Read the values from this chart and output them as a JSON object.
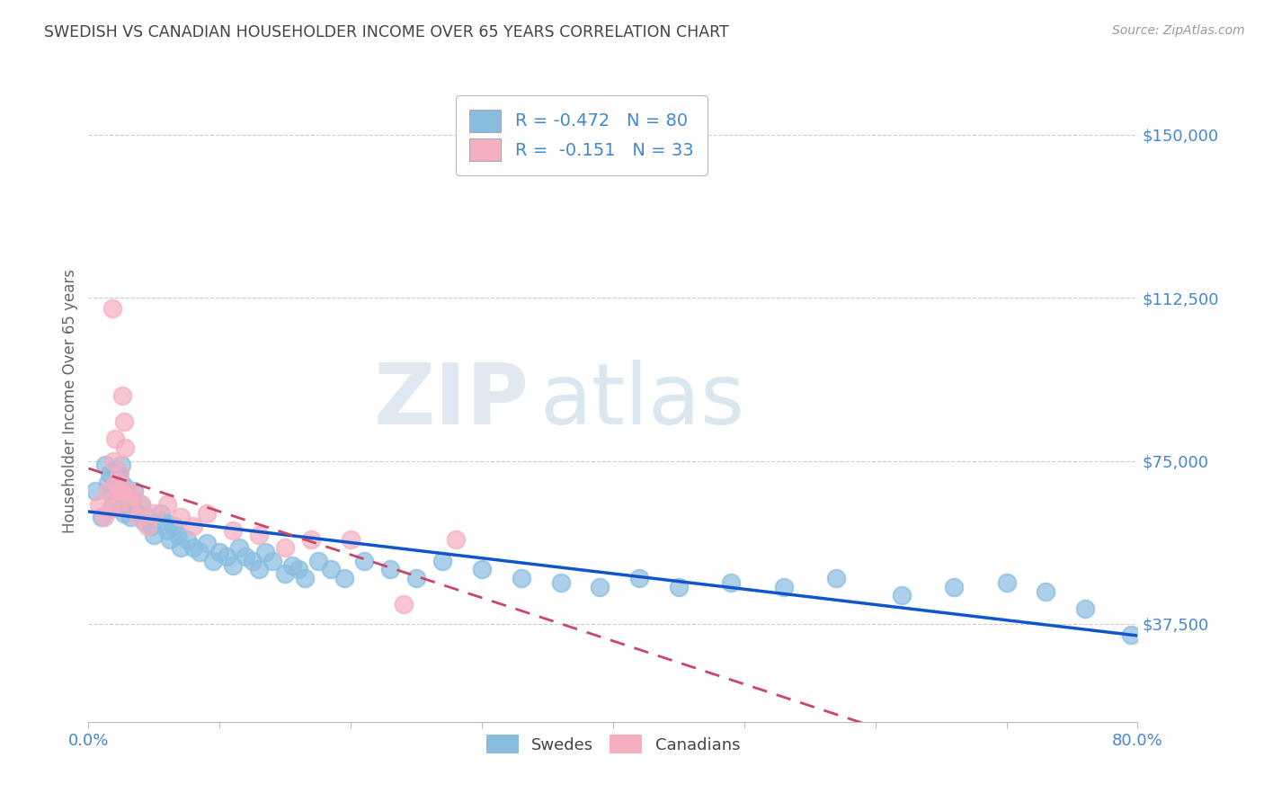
{
  "title": "SWEDISH VS CANADIAN HOUSEHOLDER INCOME OVER 65 YEARS CORRELATION CHART",
  "source": "Source: ZipAtlas.com",
  "ylabel": "Householder Income Over 65 years",
  "ytick_labels": [
    "$37,500",
    "$75,000",
    "$112,500",
    "$150,000"
  ],
  "ytick_values": [
    37500,
    75000,
    112500,
    150000
  ],
  "xlim": [
    0.0,
    0.8
  ],
  "ylim": [
    15000,
    162500
  ],
  "watermark_zip": "ZIP",
  "watermark_atlas": "atlas",
  "legend_line1": "R = -0.472   N = 80",
  "legend_line2": "R =  -0.151   N = 33",
  "swede_color": "#89bde0",
  "canadian_color": "#f4afc0",
  "swede_line_color": "#1155cc",
  "canadian_line_color": "#cc4466",
  "background_color": "#ffffff",
  "grid_color": "#cccccc",
  "axis_label_color": "#4488cc",
  "title_color": "#444444",
  "swedes_x": [
    0.005,
    0.01,
    0.013,
    0.015,
    0.016,
    0.018,
    0.019,
    0.02,
    0.021,
    0.022,
    0.022,
    0.023,
    0.023,
    0.024,
    0.024,
    0.025,
    0.025,
    0.026,
    0.026,
    0.027,
    0.028,
    0.029,
    0.03,
    0.031,
    0.032,
    0.033,
    0.035,
    0.037,
    0.04,
    0.042,
    0.045,
    0.048,
    0.05,
    0.055,
    0.058,
    0.06,
    0.062,
    0.065,
    0.068,
    0.07,
    0.075,
    0.08,
    0.085,
    0.09,
    0.095,
    0.1,
    0.105,
    0.11,
    0.115,
    0.12,
    0.125,
    0.13,
    0.135,
    0.14,
    0.15,
    0.155,
    0.16,
    0.165,
    0.175,
    0.185,
    0.195,
    0.21,
    0.23,
    0.25,
    0.27,
    0.3,
    0.33,
    0.36,
    0.39,
    0.42,
    0.45,
    0.49,
    0.53,
    0.57,
    0.62,
    0.66,
    0.7,
    0.73,
    0.76,
    0.795
  ],
  "swedes_y": [
    68000,
    62000,
    74000,
    70000,
    72000,
    68000,
    65000,
    73000,
    70000,
    69000,
    71000,
    67000,
    72000,
    68000,
    65000,
    74000,
    70000,
    68000,
    66000,
    63000,
    69000,
    65000,
    67000,
    64000,
    62000,
    66000,
    68000,
    63000,
    65000,
    61000,
    62000,
    60000,
    58000,
    63000,
    61000,
    59000,
    57000,
    60000,
    58000,
    55000,
    57000,
    55000,
    54000,
    56000,
    52000,
    54000,
    53000,
    51000,
    55000,
    53000,
    52000,
    50000,
    54000,
    52000,
    49000,
    51000,
    50000,
    48000,
    52000,
    50000,
    48000,
    52000,
    50000,
    48000,
    52000,
    50000,
    48000,
    47000,
    46000,
    48000,
    46000,
    47000,
    46000,
    48000,
    44000,
    46000,
    47000,
    45000,
    41000,
    35000
  ],
  "canadians_x": [
    0.008,
    0.012,
    0.015,
    0.017,
    0.018,
    0.019,
    0.02,
    0.021,
    0.022,
    0.023,
    0.024,
    0.025,
    0.026,
    0.027,
    0.028,
    0.03,
    0.032,
    0.035,
    0.038,
    0.04,
    0.045,
    0.05,
    0.06,
    0.07,
    0.08,
    0.09,
    0.11,
    0.13,
    0.15,
    0.17,
    0.2,
    0.24,
    0.28
  ],
  "canadians_y": [
    65000,
    62000,
    68000,
    64000,
    110000,
    75000,
    80000,
    70000,
    68000,
    65000,
    72000,
    68000,
    90000,
    84000,
    78000,
    68000,
    65000,
    67000,
    62000,
    65000,
    60000,
    63000,
    65000,
    62000,
    60000,
    63000,
    59000,
    58000,
    55000,
    57000,
    57000,
    42000,
    57000
  ]
}
